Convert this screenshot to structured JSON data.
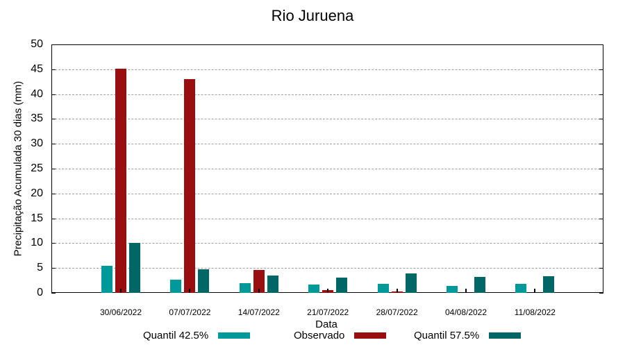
{
  "chart_data": {
    "type": "bar",
    "title": "Rio Juruena",
    "xlabel": "Data",
    "ylabel": "Precipitação Acumulada 30 dias (mm)",
    "ylim": [
      0,
      50
    ],
    "yticks": [
      0,
      5,
      10,
      15,
      20,
      25,
      30,
      35,
      40,
      45,
      50
    ],
    "grid": true,
    "legend_position": "bottom",
    "categories": [
      "30/06/2022",
      "07/07/2022",
      "14/07/2022",
      "21/07/2022",
      "28/07/2022",
      "04/08/2022",
      "11/08/2022"
    ],
    "series": [
      {
        "name": "Quantil 42.5%",
        "color": "#009999",
        "values": [
          5.5,
          2.7,
          1.9,
          1.7,
          1.8,
          1.4,
          1.8
        ]
      },
      {
        "name": "Observado",
        "color": "#990e0e",
        "values": [
          45.1,
          43.0,
          4.6,
          0.6,
          0.3,
          null,
          null
        ]
      },
      {
        "name": "Quantil 57.5%",
        "color": "#006666",
        "values": [
          10.1,
          4.8,
          3.5,
          3.1,
          3.9,
          3.2,
          3.4
        ]
      }
    ]
  }
}
